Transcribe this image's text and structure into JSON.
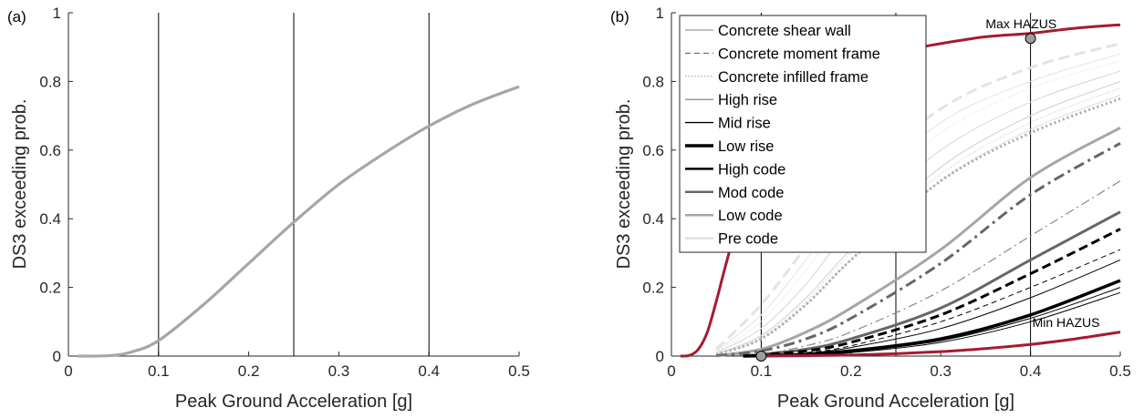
{
  "chart_data": [
    {
      "panel": "(a)",
      "type": "line",
      "xlabel": "Peak Ground Acceleration [g]",
      "ylabel": "DS3 exceeding prob.",
      "xlim": [
        0,
        0.5
      ],
      "ylim": [
        0,
        1
      ],
      "xticks": [
        "0",
        "0.1",
        "0.2",
        "0.3",
        "0.4",
        "0.5"
      ],
      "yticks": [
        "0",
        "0.2",
        "0.4",
        "0.6",
        "0.8",
        "1"
      ],
      "grid": false,
      "vlines": [
        0.1,
        0.25,
        0.4
      ],
      "series": [
        {
          "color": "#a6a6a6",
          "width": 3.2,
          "dash": "",
          "x": [
            0.01,
            0.03,
            0.05,
            0.07,
            0.1,
            0.15,
            0.2,
            0.25,
            0.3,
            0.35,
            0.4,
            0.45,
            0.5
          ],
          "y": [
            0.0,
            0.0,
            0.002,
            0.012,
            0.045,
            0.15,
            0.27,
            0.39,
            0.5,
            0.59,
            0.67,
            0.735,
            0.785
          ]
        }
      ]
    },
    {
      "panel": "(b)",
      "type": "line",
      "xlabel": "Peak Ground Acceleration [g]",
      "ylabel": "DS3 exceeding prob.",
      "xlim": [
        0,
        0.5
      ],
      "ylim": [
        0,
        1
      ],
      "xticks": [
        "0",
        "0.1",
        "0.2",
        "0.3",
        "0.4",
        "0.5"
      ],
      "yticks": [
        "0",
        "0.2",
        "0.4",
        "0.6",
        "0.8",
        "1"
      ],
      "grid": false,
      "vlines": [
        0.1,
        0.25,
        0.4
      ],
      "legend_position": "top-left",
      "legend": [
        {
          "label": "Concrete shear wall",
          "color": "#9a9a9a",
          "width": 1.2,
          "dash": ""
        },
        {
          "label": "Concrete moment frame",
          "color": "#555555",
          "width": 1.0,
          "dash": "6,4"
        },
        {
          "label": "Concrete infilled frame",
          "color": "#9a9a9a",
          "width": 1.0,
          "dash": "1.5,2"
        },
        {
          "label": "High rise",
          "color": "#555555",
          "width": 0.8,
          "dash": ""
        },
        {
          "label": "Mid rise",
          "color": "#000000",
          "width": 1.4,
          "dash": ""
        },
        {
          "label": "Low rise",
          "color": "#000000",
          "width": 3.5,
          "dash": ""
        },
        {
          "label": "High code",
          "color": "#000000",
          "width": 2.5,
          "dash": ""
        },
        {
          "label": "Mod code",
          "color": "#666666",
          "width": 2.5,
          "dash": ""
        },
        {
          "label": "Low code",
          "color": "#a6a6a6",
          "width": 2.5,
          "dash": ""
        },
        {
          "label": "Pre code",
          "color": "#e0e0e0",
          "width": 2.5,
          "dash": ""
        }
      ],
      "annotations": [
        {
          "text": "Max HAZUS",
          "x": 0.35,
          "y": 0.955
        },
        {
          "text": "Min HAZUS",
          "x": 0.402,
          "y": 0.085
        }
      ],
      "markers": [
        {
          "x": 0.4,
          "y": 0.925
        },
        {
          "x": 0.1,
          "y": 0.0
        }
      ],
      "series": [
        {
          "name": "Max HAZUS",
          "color": "#a51c30",
          "width": 3,
          "dash": "",
          "x": [
            0.01,
            0.02,
            0.03,
            0.04,
            0.05,
            0.06,
            0.08,
            0.1,
            0.15,
            0.2,
            0.25,
            0.3,
            0.35,
            0.4,
            0.45,
            0.5
          ],
          "y": [
            0.0,
            0.002,
            0.02,
            0.07,
            0.16,
            0.26,
            0.45,
            0.6,
            0.76,
            0.84,
            0.885,
            0.91,
            0.93,
            0.94,
            0.955,
            0.965
          ]
        },
        {
          "name": "Min HAZUS",
          "color": "#a51c30",
          "width": 3,
          "dash": "",
          "x": [
            0.1,
            0.15,
            0.2,
            0.25,
            0.3,
            0.35,
            0.4,
            0.45,
            0.5
          ],
          "y": [
            0.0,
            0.001,
            0.003,
            0.007,
            0.013,
            0.022,
            0.034,
            0.05,
            0.07
          ]
        },
        {
          "color": "#e3e3e3",
          "width": 3,
          "dash": "12,6",
          "x": [
            0.05,
            0.1,
            0.15,
            0.2,
            0.3,
            0.4,
            0.5
          ],
          "y": [
            0.02,
            0.15,
            0.32,
            0.5,
            0.72,
            0.84,
            0.91
          ]
        },
        {
          "color": "#e8e8e8",
          "width": 1.2,
          "dash": "",
          "x": [
            0.05,
            0.1,
            0.15,
            0.2,
            0.3,
            0.4,
            0.5
          ],
          "y": [
            0.015,
            0.12,
            0.28,
            0.45,
            0.68,
            0.8,
            0.88
          ]
        },
        {
          "color": "#e6e6e6",
          "width": 1.2,
          "dash": "1.5,2",
          "x": [
            0.05,
            0.1,
            0.15,
            0.2,
            0.3,
            0.4,
            0.5
          ],
          "y": [
            0.012,
            0.1,
            0.25,
            0.42,
            0.65,
            0.78,
            0.86
          ]
        },
        {
          "color": "#dcdcdc",
          "width": 1.2,
          "dash": "",
          "x": [
            0.05,
            0.1,
            0.15,
            0.2,
            0.3,
            0.4,
            0.5
          ],
          "y": [
            0.01,
            0.08,
            0.21,
            0.37,
            0.6,
            0.74,
            0.83
          ]
        },
        {
          "color": "#d6d6d6",
          "width": 1.2,
          "dash": "",
          "x": [
            0.05,
            0.1,
            0.15,
            0.2,
            0.3,
            0.4,
            0.5
          ],
          "y": [
            0.006,
            0.06,
            0.17,
            0.31,
            0.55,
            0.7,
            0.8
          ]
        },
        {
          "color": "#d0d0d0",
          "width": 1.0,
          "dash": "1.5,2",
          "x": [
            0.05,
            0.1,
            0.15,
            0.2,
            0.3,
            0.4,
            0.5
          ],
          "y": [
            0.005,
            0.055,
            0.16,
            0.3,
            0.53,
            0.68,
            0.78
          ]
        },
        {
          "color": "#dddddd",
          "width": 1.0,
          "dash": "",
          "x": [
            0.05,
            0.1,
            0.15,
            0.2,
            0.3,
            0.4,
            0.5
          ],
          "y": [
            0.004,
            0.05,
            0.15,
            0.28,
            0.51,
            0.66,
            0.76
          ]
        },
        {
          "color": "#aaaaaa",
          "width": 3,
          "dash": "2,3",
          "x": [
            0.05,
            0.1,
            0.15,
            0.2,
            0.3,
            0.4,
            0.5
          ],
          "y": [
            0.005,
            0.05,
            0.15,
            0.28,
            0.51,
            0.65,
            0.75
          ]
        },
        {
          "color": "#a6a6a6",
          "width": 3,
          "dash": "",
          "x": [
            0.05,
            0.1,
            0.15,
            0.2,
            0.3,
            0.4,
            0.5
          ],
          "y": [
            0.001,
            0.02,
            0.07,
            0.14,
            0.31,
            0.52,
            0.665
          ]
        },
        {
          "color": "#666666",
          "width": 3,
          "dash": "12,5,3,5",
          "x": [
            0.05,
            0.1,
            0.15,
            0.2,
            0.3,
            0.4,
            0.5
          ],
          "y": [
            0.001,
            0.015,
            0.05,
            0.11,
            0.27,
            0.47,
            0.62
          ]
        },
        {
          "color": "#888888",
          "width": 1.2,
          "dash": "10,4,2,4",
          "x": [
            0.05,
            0.1,
            0.15,
            0.2,
            0.3,
            0.4,
            0.5
          ],
          "y": [
            0.0,
            0.006,
            0.03,
            0.07,
            0.19,
            0.35,
            0.51
          ]
        },
        {
          "color": "#666666",
          "width": 3,
          "dash": "",
          "x": [
            0.08,
            0.1,
            0.15,
            0.2,
            0.3,
            0.4,
            0.5
          ],
          "y": [
            0.0,
            0.005,
            0.02,
            0.05,
            0.14,
            0.28,
            0.42
          ]
        },
        {
          "color": "#000000",
          "width": 3,
          "dash": "10,5",
          "x": [
            0.08,
            0.1,
            0.15,
            0.2,
            0.3,
            0.4,
            0.5
          ],
          "y": [
            0.0,
            0.004,
            0.015,
            0.04,
            0.12,
            0.24,
            0.37
          ]
        },
        {
          "color": "#000000",
          "width": 1.0,
          "dash": "6,4",
          "x": [
            0.08,
            0.1,
            0.15,
            0.2,
            0.3,
            0.4,
            0.5
          ],
          "y": [
            0.0,
            0.002,
            0.01,
            0.03,
            0.1,
            0.2,
            0.31
          ]
        },
        {
          "color": "#000000",
          "width": 1.0,
          "dash": "",
          "x": [
            0.08,
            0.1,
            0.15,
            0.2,
            0.3,
            0.4,
            0.5
          ],
          "y": [
            0.0,
            0.002,
            0.008,
            0.025,
            0.08,
            0.17,
            0.28
          ]
        },
        {
          "color": "#000000",
          "width": 3.5,
          "dash": "",
          "x": [
            0.08,
            0.1,
            0.15,
            0.2,
            0.3,
            0.4,
            0.5
          ],
          "y": [
            0.0,
            0.001,
            0.005,
            0.015,
            0.05,
            0.12,
            0.22
          ]
        },
        {
          "color": "#000000",
          "width": 1.0,
          "dash": "",
          "x": [
            0.08,
            0.1,
            0.15,
            0.2,
            0.3,
            0.4,
            0.5
          ],
          "y": [
            0.0,
            0.001,
            0.004,
            0.012,
            0.045,
            0.11,
            0.2
          ]
        },
        {
          "color": "#000000",
          "width": 1.0,
          "dash": "",
          "x": [
            0.08,
            0.1,
            0.15,
            0.2,
            0.3,
            0.4,
            0.5
          ],
          "y": [
            0.0,
            0.001,
            0.004,
            0.01,
            0.04,
            0.1,
            0.185
          ]
        }
      ]
    }
  ]
}
